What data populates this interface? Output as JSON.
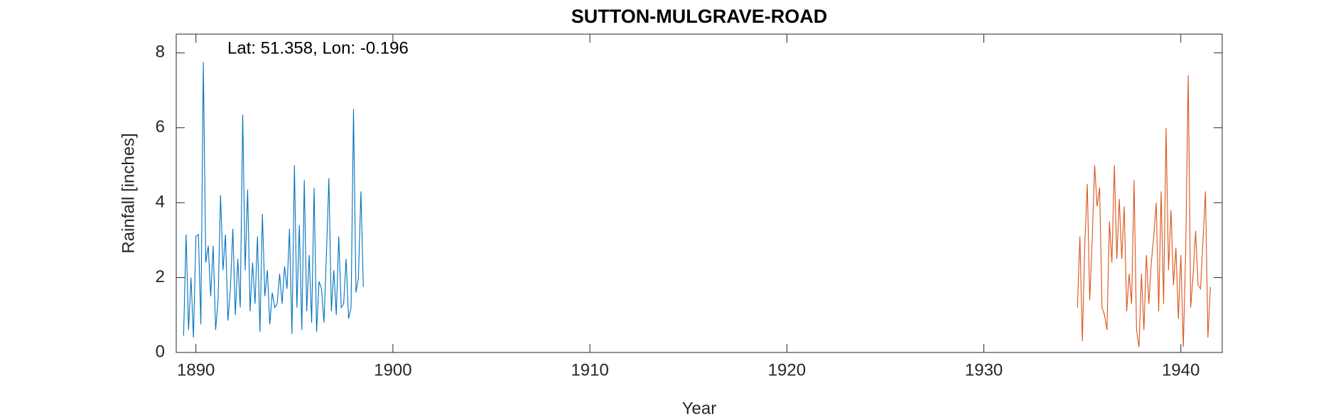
{
  "chart_data": {
    "type": "line",
    "title": "SUTTON-MULGRAVE-ROAD",
    "annotation": "Lat: 51.358, Lon: -0.196",
    "xlabel": "Year",
    "ylabel": "Rainfall [inches]",
    "xlim": [
      1889,
      1942.1
    ],
    "xticks": [
      1890,
      1900,
      1910,
      1920,
      1930,
      1940
    ],
    "ylim": [
      0,
      8.5
    ],
    "yticks": [
      0,
      2,
      4,
      6,
      8
    ],
    "grid": false,
    "series": [
      {
        "color": "#0072BD",
        "x": [
          1889.375,
          1889.5,
          1889.625,
          1889.75,
          1889.875,
          1890.0,
          1890.125,
          1890.25,
          1890.375,
          1890.5,
          1890.625,
          1890.75,
          1890.875,
          1891.0,
          1891.125,
          1891.25,
          1891.375,
          1891.5,
          1891.625,
          1891.75,
          1891.875,
          1892.0,
          1892.125,
          1892.25,
          1892.375,
          1892.5,
          1892.625,
          1892.75,
          1892.875,
          1893.0,
          1893.125,
          1893.25,
          1893.375,
          1893.5,
          1893.625,
          1893.75,
          1893.875,
          1894.0,
          1894.125,
          1894.25,
          1894.375,
          1894.5,
          1894.625,
          1894.75,
          1894.875,
          1895.0,
          1895.125,
          1895.25,
          1895.375,
          1895.5,
          1895.625,
          1895.75,
          1895.875,
          1896.0,
          1896.125,
          1896.25,
          1896.375,
          1896.5,
          1896.625,
          1896.75,
          1896.875,
          1897.0,
          1897.125,
          1897.25,
          1897.375,
          1897.5,
          1897.625,
          1897.75,
          1897.875,
          1898.0,
          1898.125,
          1898.25,
          1898.375,
          1898.5
        ],
        "values": [
          0.45,
          3.15,
          0.6,
          2.0,
          0.4,
          3.1,
          3.15,
          0.75,
          7.75,
          2.4,
          2.85,
          1.5,
          2.85,
          0.6,
          1.4,
          4.2,
          2.2,
          3.15,
          0.85,
          1.7,
          3.3,
          1.0,
          2.5,
          1.2,
          6.35,
          2.2,
          4.35,
          1.1,
          2.4,
          1.3,
          3.1,
          0.55,
          3.7,
          1.5,
          2.2,
          0.75,
          1.6,
          1.2,
          1.3,
          2.1,
          1.3,
          2.3,
          1.7,
          3.3,
          0.5,
          5.0,
          1.2,
          3.4,
          0.6,
          4.6,
          1.1,
          2.6,
          0.8,
          4.4,
          0.55,
          1.9,
          1.7,
          0.8,
          2.6,
          4.65,
          1.1,
          2.2,
          1.0,
          3.1,
          1.2,
          1.3,
          2.5,
          0.9,
          1.2,
          6.5,
          1.6,
          2.0,
          4.3,
          1.75
        ]
      },
      {
        "color": "#D95319",
        "x": [
          1934.75,
          1934.875,
          1935.0,
          1935.125,
          1935.25,
          1935.375,
          1935.5,
          1935.625,
          1935.75,
          1935.875,
          1936.0,
          1936.125,
          1936.25,
          1936.375,
          1936.5,
          1936.625,
          1936.75,
          1936.875,
          1937.0,
          1937.125,
          1937.25,
          1937.375,
          1937.5,
          1937.625,
          1937.75,
          1937.875,
          1938.0,
          1938.125,
          1938.25,
          1938.375,
          1938.5,
          1938.625,
          1938.75,
          1938.875,
          1939.0,
          1939.125,
          1939.25,
          1939.375,
          1939.5,
          1939.625,
          1939.75,
          1939.875,
          1940.0,
          1940.125,
          1940.25,
          1940.375,
          1940.5,
          1940.625,
          1940.75,
          1940.875,
          1941.0,
          1941.125,
          1941.25,
          1941.375,
          1941.5
        ],
        "values": [
          1.2,
          3.1,
          0.3,
          2.9,
          4.5,
          1.4,
          3.0,
          5.0,
          3.9,
          4.4,
          1.2,
          1.0,
          0.6,
          3.5,
          2.4,
          5.0,
          2.5,
          4.1,
          2.5,
          3.9,
          1.1,
          2.1,
          1.3,
          4.6,
          0.6,
          0.15,
          2.1,
          0.6,
          2.6,
          1.3,
          2.4,
          3.1,
          4.0,
          1.1,
          4.3,
          1.3,
          6.0,
          2.2,
          3.8,
          1.8,
          2.8,
          0.9,
          2.6,
          0.15,
          2.8,
          7.4,
          1.2,
          2.1,
          3.25,
          1.8,
          1.7,
          3.0,
          4.3,
          0.4,
          1.75
        ]
      }
    ]
  }
}
